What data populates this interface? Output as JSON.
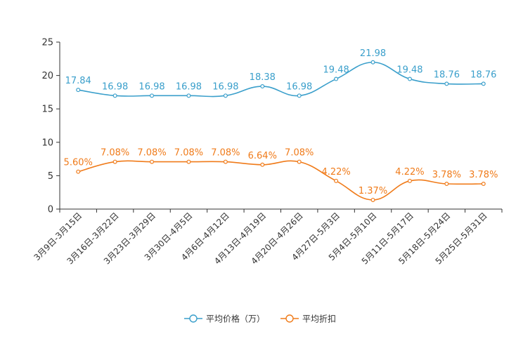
{
  "chart_data": {
    "type": "line",
    "title": "",
    "xlabel": "",
    "ylabel": "",
    "ylim": [
      0,
      25
    ],
    "yticks": [
      0,
      5,
      10,
      15,
      20,
      25
    ],
    "grid": false,
    "legend_position": "bottom-center",
    "categories": [
      "3月9日-3月15日",
      "3月16日-3月22日",
      "3月23日-3月29日",
      "3月30日-4月5日",
      "4月6日-4月12日",
      "4月13日-4月19日",
      "4月20日-4月26日",
      "4月27日-5月3日",
      "5月4日-5月10日",
      "5月11日-5月17日",
      "5月18日-5月24日",
      "5月25日-5月31日"
    ],
    "series": [
      {
        "name": "平均价格（万）",
        "color": "#3a9fcb",
        "values": [
          17.84,
          16.98,
          16.98,
          16.98,
          16.98,
          18.38,
          16.98,
          19.48,
          21.98,
          19.48,
          18.76,
          18.76
        ],
        "labels": [
          "17.84",
          "16.98",
          "16.98",
          "16.98",
          "16.98",
          "18.38",
          "16.98",
          "19.48",
          "21.98",
          "19.48",
          "18.76",
          "18.76"
        ]
      },
      {
        "name": "平均折扣",
        "color": "#f07b1a",
        "values": [
          5.6,
          7.08,
          7.08,
          7.08,
          7.08,
          6.64,
          7.08,
          4.22,
          1.37,
          4.22,
          3.78,
          3.78
        ],
        "labels": [
          "5.60%",
          "7.08%",
          "7.08%",
          "7.08%",
          "7.08%",
          "6.64%",
          "7.08%",
          "4.22%",
          "1.37%",
          "4.22%",
          "3.78%",
          "3.78%"
        ]
      }
    ]
  }
}
